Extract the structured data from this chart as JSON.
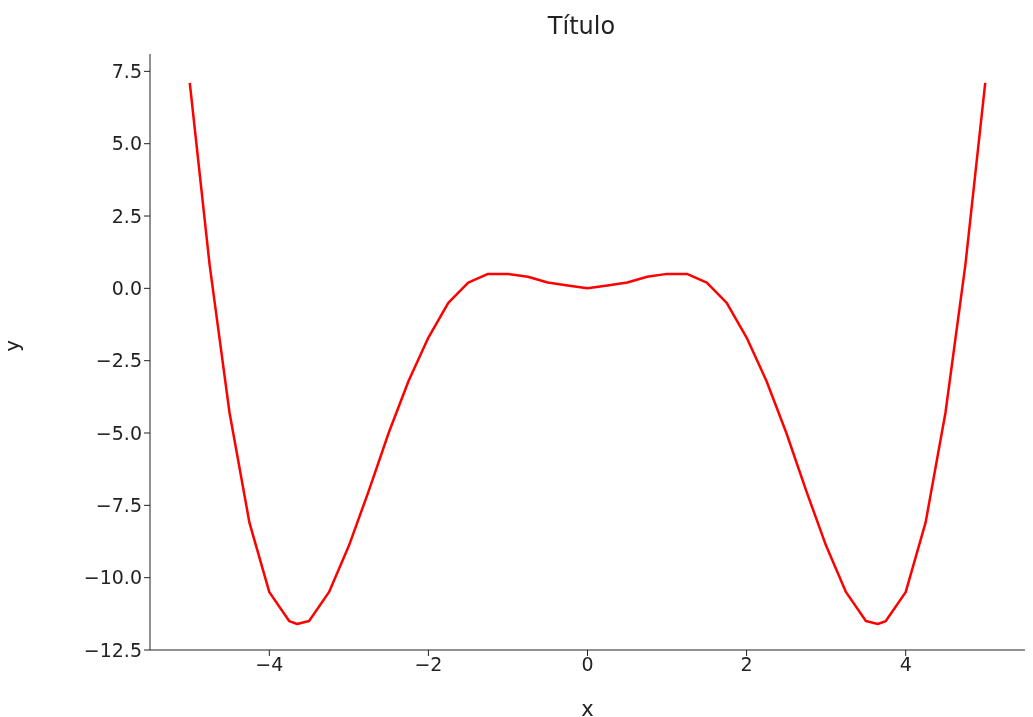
{
  "chart_data": {
    "type": "line",
    "title": "Título",
    "xlabel": "x",
    "ylabel": "y",
    "x": [
      -5,
      -4.75,
      -4.5,
      -4.25,
      -4,
      -3.75,
      -3.65,
      -3.5,
      -3.25,
      -3,
      -2.75,
      -2.5,
      -2.25,
      -2,
      -1.75,
      -1.5,
      -1.25,
      -1.1,
      -1,
      -0.75,
      -0.5,
      -0.25,
      0,
      0.25,
      0.5,
      0.75,
      1,
      1.1,
      1.25,
      1.5,
      1.75,
      2,
      2.25,
      2.5,
      2.75,
      3,
      3.25,
      3.5,
      3.65,
      3.75,
      4,
      4.25,
      4.5,
      4.75,
      5
    ],
    "series": [
      {
        "color": "#ff0000",
        "values": [
          7.1,
          0.8,
          -4.3,
          -8.1,
          -10.5,
          -11.5,
          -11.6,
          -11.5,
          -10.5,
          -8.9,
          -7.0,
          -5.0,
          -3.2,
          -1.7,
          -0.5,
          0.2,
          0.5,
          0.5,
          0.5,
          0.4,
          0.2,
          0.1,
          0,
          0.1,
          0.2,
          0.4,
          0.5,
          0.5,
          0.5,
          0.2,
          -0.5,
          -1.7,
          -3.2,
          -5.0,
          -7.0,
          -8.9,
          -10.5,
          -11.5,
          -11.6,
          -11.5,
          -10.5,
          -8.1,
          -4.3,
          0.8,
          7.1
        ]
      }
    ],
    "xlim": [
      -5.5,
      5.5
    ],
    "ylim": [
      -12.5,
      8.1
    ],
    "xticks": [
      {
        "value": -4,
        "label": "−4"
      },
      {
        "value": -2,
        "label": "−2"
      },
      0,
      2,
      4
    ],
    "yticks": [
      {
        "value": -12.5,
        "label": "−12.5"
      },
      {
        "value": -10,
        "label": "−10.0"
      },
      {
        "value": -7.5,
        "label": "−7.5"
      },
      {
        "value": -5,
        "label": "−5.0"
      },
      {
        "value": -2.5,
        "label": "−2.5"
      },
      {
        "value": 0,
        "label": "0.0"
      },
      {
        "value": 2.5,
        "label": "2.5"
      },
      {
        "value": 5,
        "label": "5.0"
      },
      {
        "value": 7.5,
        "label": "7.5"
      }
    ],
    "line_style": "solid",
    "marker": "none",
    "grid": false,
    "legend": false
  }
}
